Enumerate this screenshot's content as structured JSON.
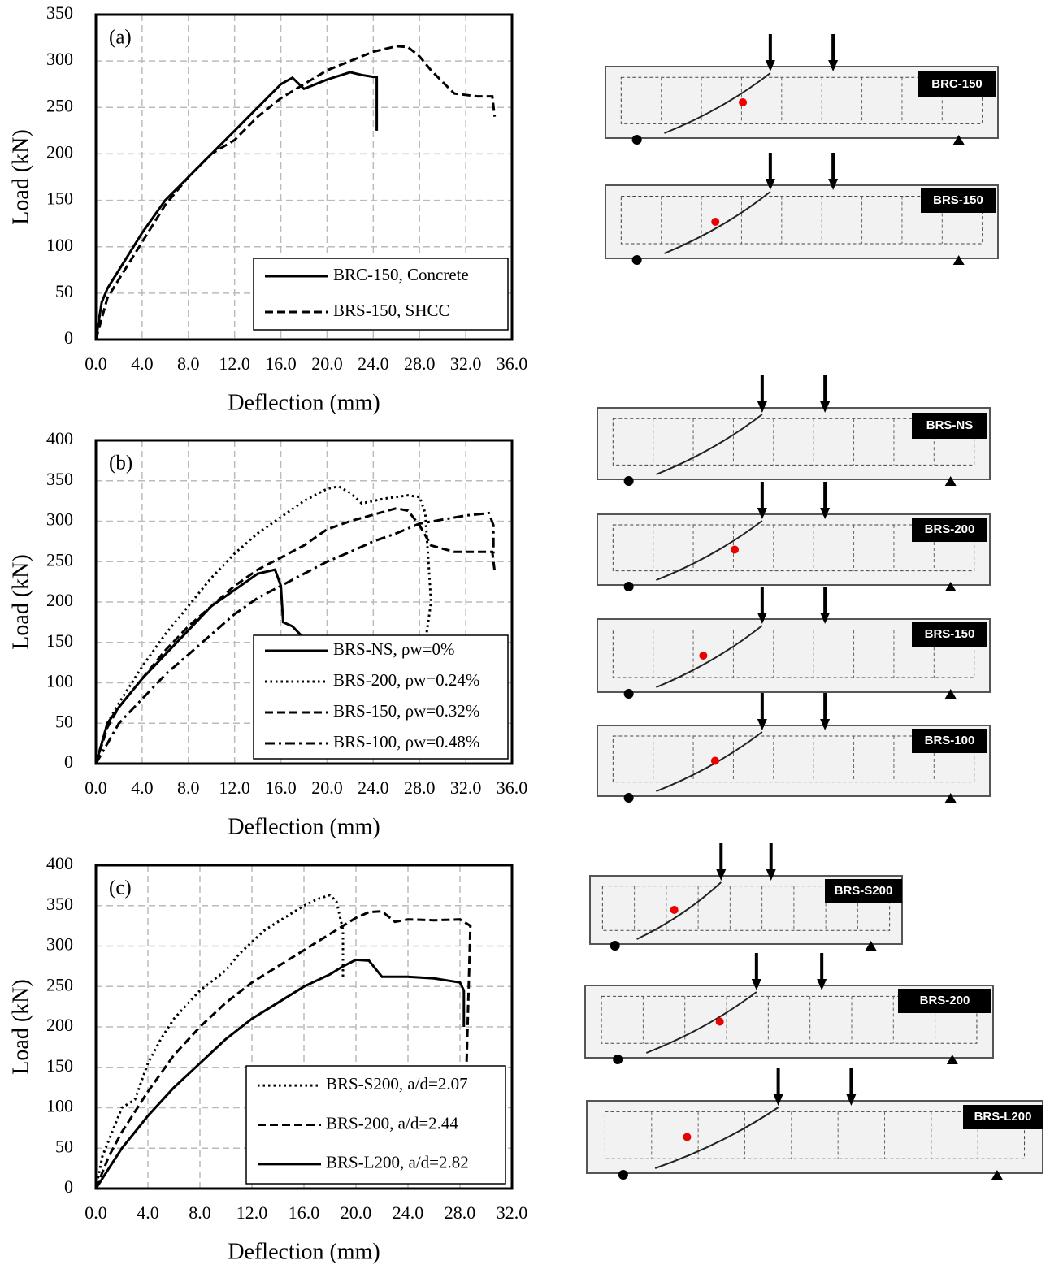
{
  "chart_data": [
    {
      "type": "line",
      "annotation": "(a)",
      "xlabel": "Deflection (mm)",
      "ylabel": "Load (kN)",
      "xlim": [
        0,
        36
      ],
      "ylim": [
        0,
        350
      ],
      "xticks": [
        {
          "value": 0,
          "label": "0.0"
        },
        {
          "value": 4,
          "label": "4.0"
        },
        {
          "value": 8,
          "label": "8.0"
        },
        {
          "value": 12,
          "label": "12.0"
        },
        {
          "value": 16,
          "label": "16.0"
        },
        {
          "value": 20,
          "label": "20.0"
        },
        {
          "value": 24,
          "label": "24.0"
        },
        {
          "value": 28,
          "label": "28.0"
        },
        {
          "value": 32,
          "label": "32.0"
        },
        {
          "value": 36,
          "label": "36.0"
        }
      ],
      "yticks": [
        0,
        50,
        100,
        150,
        200,
        250,
        300,
        350
      ],
      "grid": true,
      "legend": "lower right",
      "series": [
        {
          "name": "BRC-150, Concrete",
          "color": "#000000",
          "line_style": "solid",
          "x": [
            0,
            0.5,
            1,
            2,
            3,
            4,
            6,
            8,
            10,
            12,
            14,
            16,
            17,
            18,
            19,
            20,
            22,
            23,
            24,
            24.3,
            24.3
          ],
          "values": [
            0,
            40,
            55,
            75,
            95,
            115,
            150,
            175,
            200,
            225,
            250,
            275,
            282,
            270,
            275,
            280,
            288,
            285,
            283,
            283,
            225
          ]
        },
        {
          "name": "BRS-150, SHCC",
          "color": "#000000",
          "line_style": "dashed",
          "x": [
            0,
            1,
            2,
            4,
            6,
            8,
            10,
            12,
            14,
            16,
            18,
            20,
            22,
            24,
            26,
            27,
            28,
            29,
            31,
            33,
            34.3,
            34.5
          ],
          "values": [
            0,
            45,
            65,
            105,
            145,
            175,
            200,
            215,
            240,
            260,
            275,
            290,
            300,
            310,
            316,
            315,
            305,
            290,
            265,
            262,
            262,
            240
          ]
        }
      ]
    },
    {
      "type": "line",
      "annotation": "(b)",
      "xlabel": "Deflection (mm)",
      "ylabel": "Load (kN)",
      "xlim": [
        0,
        36
      ],
      "ylim": [
        0,
        400
      ],
      "xticks": [
        {
          "value": 0,
          "label": "0.0"
        },
        {
          "value": 4,
          "label": "4.0"
        },
        {
          "value": 8,
          "label": "8.0"
        },
        {
          "value": 12,
          "label": "12.0"
        },
        {
          "value": 16,
          "label": "16.0"
        },
        {
          "value": 20,
          "label": "20.0"
        },
        {
          "value": 24,
          "label": "24.0"
        },
        {
          "value": 28,
          "label": "28.0"
        },
        {
          "value": 32,
          "label": "32.0"
        },
        {
          "value": 36,
          "label": "36.0"
        }
      ],
      "yticks": [
        0,
        50,
        100,
        150,
        200,
        250,
        300,
        350,
        400
      ],
      "grid": true,
      "legend": "lower right",
      "series": [
        {
          "name": "BRS-NS, ρw=0%",
          "color": "#000000",
          "line_style": "solid",
          "x": [
            0,
            1,
            2,
            4,
            6,
            8,
            10,
            12,
            14,
            15.5,
            16,
            16.2,
            17,
            18,
            19,
            20
          ],
          "values": [
            0,
            50,
            70,
            105,
            135,
            165,
            195,
            215,
            235,
            240,
            220,
            175,
            170,
            155,
            145,
            138
          ]
        },
        {
          "name": "BRS-200, ρw=0.24%",
          "color": "#000000",
          "line_style": "dotted",
          "x": [
            0,
            1,
            2,
            4,
            6,
            8,
            10,
            12,
            14,
            16,
            18,
            20,
            21,
            22,
            23,
            25,
            27,
            28,
            28.5,
            29,
            28.5
          ],
          "values": [
            0,
            50,
            75,
            120,
            160,
            195,
            230,
            260,
            285,
            305,
            325,
            340,
            343,
            335,
            322,
            328,
            332,
            330,
            310,
            200,
            150
          ]
        },
        {
          "name": "BRS-150, ρw=0.32%",
          "color": "#000000",
          "line_style": "dashed",
          "x": [
            0,
            1,
            2,
            4,
            6,
            8,
            10,
            12,
            14,
            16,
            18,
            20,
            22,
            24,
            26,
            27,
            28,
            29,
            31,
            33,
            34.3,
            34.5
          ],
          "values": [
            0,
            45,
            70,
            105,
            140,
            170,
            195,
            220,
            240,
            255,
            270,
            290,
            300,
            308,
            316,
            313,
            295,
            270,
            262,
            262,
            262,
            238
          ]
        },
        {
          "name": "BRS-100, ρw=0.48%",
          "color": "#000000",
          "line_style": "dashdot",
          "x": [
            0,
            1,
            2,
            4,
            6,
            8,
            10,
            12,
            14,
            16,
            18,
            20,
            22,
            24,
            26,
            28,
            30,
            32,
            34,
            34.4,
            34.4
          ],
          "values": [
            0,
            25,
            50,
            80,
            110,
            135,
            160,
            185,
            205,
            220,
            235,
            250,
            262,
            275,
            285,
            297,
            302,
            307,
            310,
            295,
            260
          ]
        }
      ]
    },
    {
      "type": "line",
      "annotation": "(c)",
      "xlabel": "Deflection (mm)",
      "ylabel": "Load (kN)",
      "xlim": [
        0,
        32
      ],
      "ylim": [
        0,
        400
      ],
      "xticks": [
        {
          "value": 0,
          "label": "0.0"
        },
        {
          "value": 4,
          "label": "4.0"
        },
        {
          "value": 8,
          "label": "8.0"
        },
        {
          "value": 12,
          "label": "12.0"
        },
        {
          "value": 16,
          "label": "16.0"
        },
        {
          "value": 20,
          "label": "20.0"
        },
        {
          "value": 24,
          "label": "24.0"
        },
        {
          "value": 28,
          "label": "28.0"
        },
        {
          "value": 32,
          "label": "32.0"
        }
      ],
      "yticks": [
        0,
        50,
        100,
        150,
        200,
        250,
        300,
        350,
        400
      ],
      "grid": true,
      "legend": "lower right",
      "series": [
        {
          "name": "BRS-S200, a/d=2.07",
          "color": "#000000",
          "line_style": "dotted",
          "x": [
            0,
            0.5,
            1,
            2,
            3,
            4,
            5,
            6,
            8,
            10,
            11,
            12,
            13,
            14,
            15,
            16,
            17,
            18,
            18.5,
            19,
            19
          ],
          "values": [
            0,
            40,
            60,
            100,
            110,
            155,
            185,
            210,
            245,
            270,
            290,
            305,
            320,
            330,
            340,
            350,
            358,
            363,
            355,
            320,
            260
          ]
        },
        {
          "name": "BRS-200,    a/d=2.44",
          "color": "#000000",
          "line_style": "dashed",
          "x": [
            0,
            1,
            2,
            4,
            6,
            8,
            10,
            12,
            14,
            16,
            18,
            20,
            21,
            22,
            23,
            24,
            26,
            28,
            28.8,
            28.5,
            28.3
          ],
          "values": [
            0,
            40,
            70,
            120,
            165,
            200,
            230,
            255,
            275,
            295,
            315,
            335,
            342,
            343,
            330,
            333,
            332,
            333,
            325,
            150,
            110
          ]
        },
        {
          "name": "BRS-L200, a/d=2.82",
          "color": "#000000",
          "line_style": "solid",
          "x": [
            0,
            1,
            2,
            4,
            6,
            8,
            10,
            12,
            14,
            16,
            18,
            19,
            20,
            21,
            22,
            24,
            26,
            28,
            28.3,
            28.3
          ],
          "values": [
            0,
            25,
            50,
            90,
            125,
            155,
            185,
            210,
            230,
            250,
            265,
            275,
            283,
            282,
            262,
            262,
            260,
            255,
            245,
            200
          ]
        }
      ]
    }
  ],
  "photos": [
    {
      "label": "BRC-150"
    },
    {
      "label": "BRS-150"
    },
    {
      "label": "BRS-NS"
    },
    {
      "label": "BRS-200"
    },
    {
      "label": "BRS-150"
    },
    {
      "label": "BRS-100"
    },
    {
      "label": "BRS-S200"
    },
    {
      "label": "BRS-200"
    },
    {
      "label": "BRS-L200"
    }
  ]
}
